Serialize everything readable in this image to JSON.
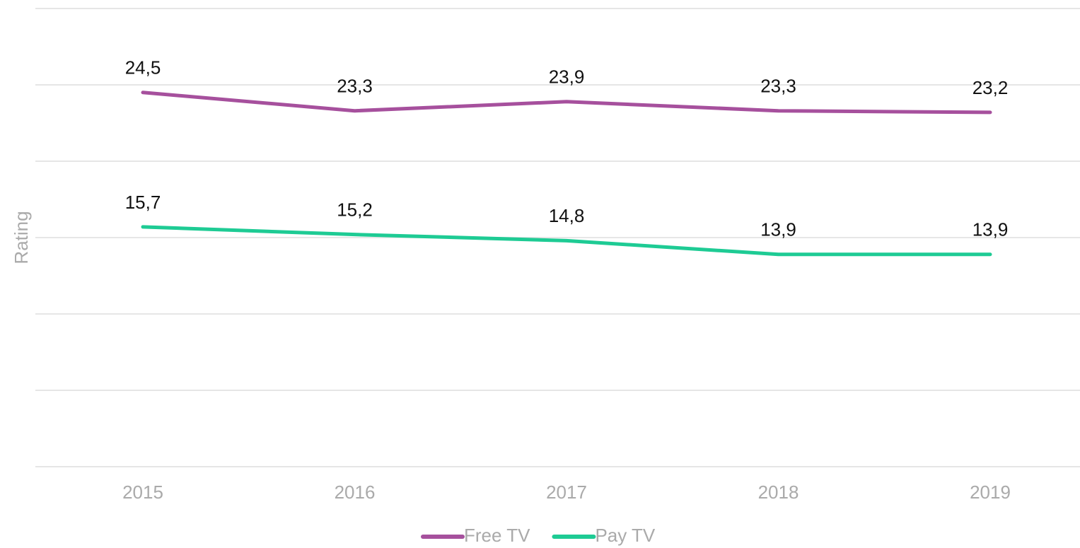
{
  "chart_data": {
    "type": "line",
    "y_label": "Rating",
    "categories": [
      "2015",
      "2016",
      "2017",
      "2018",
      "2019"
    ],
    "series": [
      {
        "name": "Free TV",
        "color": "#a6509d",
        "values": [
          24.5,
          23.3,
          23.9,
          23.3,
          23.2
        ],
        "value_labels": [
          "24,5",
          "23,3",
          "23,9",
          "23,3",
          "23,2"
        ]
      },
      {
        "name": "Pay TV",
        "color": "#1ecb94",
        "values": [
          15.7,
          15.2,
          14.8,
          13.9,
          13.9
        ],
        "value_labels": [
          "15,7",
          "15,2",
          "14,8",
          "13,9",
          "13,9"
        ]
      }
    ],
    "ylim": [
      0,
      30
    ],
    "yticks": [
      0,
      5,
      10,
      15,
      20,
      25,
      30
    ],
    "grid": true,
    "legend": "bottom"
  }
}
